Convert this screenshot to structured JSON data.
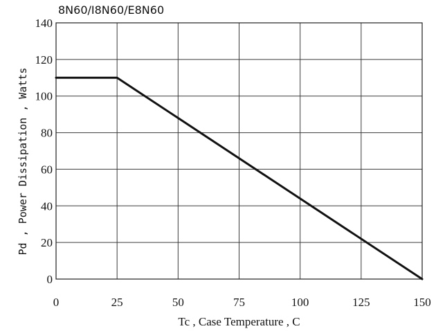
{
  "chart_data": {
    "type": "line",
    "title": "8N60/I8N60/E8N60",
    "xlabel": "Tc , Case Temperature , C",
    "ylabel": "Pd , Power Dissipation , Watts",
    "xlim": [
      0,
      150
    ],
    "ylim": [
      0,
      140
    ],
    "x_ticks": [
      0,
      25,
      50,
      75,
      100,
      125,
      150
    ],
    "y_ticks": [
      0,
      20,
      40,
      60,
      80,
      100,
      120,
      140
    ],
    "grid": true,
    "series": [
      {
        "x": [
          0,
          25,
          150
        ],
        "y": [
          110,
          110,
          0
        ]
      }
    ],
    "colors": {
      "line": "#111111",
      "grid": "#3a3a3a",
      "background": "#ffffff"
    }
  }
}
